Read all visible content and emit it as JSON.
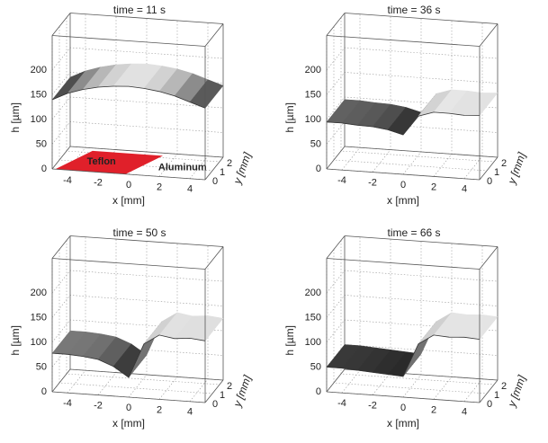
{
  "chart_data": [
    {
      "type": "surface",
      "title": "time = 11 s",
      "x_label": "x [mm]",
      "y_label": "y [mm]",
      "z_label": "h [µm]",
      "x": [
        -5,
        -4,
        -3,
        -2,
        -1,
        0,
        1,
        2,
        3,
        4,
        5
      ],
      "values": [
        140,
        155,
        165,
        172,
        176,
        178,
        176,
        172,
        165,
        155,
        145
      ],
      "xlim": [
        -5,
        5
      ],
      "xticks": [
        -4,
        -2,
        0,
        2,
        4
      ],
      "ylim": [
        0,
        2.5
      ],
      "yticks": [
        0,
        1,
        2
      ],
      "zlim": [
        0,
        270
      ],
      "zticks": [
        0,
        50,
        100,
        150,
        200
      ],
      "annotations": [
        "Teflon",
        "Aluminum"
      ],
      "annotation_color": "#e0202a"
    },
    {
      "type": "surface",
      "title": "time = 36 s",
      "x_label": "x [mm]",
      "y_label": "y [mm]",
      "z_label": "h [µm]",
      "x": [
        -5,
        -4,
        -3,
        -2,
        -1,
        0,
        1,
        2,
        3,
        4,
        5
      ],
      "values": [
        95,
        95,
        93,
        92,
        88,
        80,
        120,
        130,
        130,
        128,
        130
      ],
      "xlim": [
        -5,
        5
      ],
      "xticks": [
        -4,
        -2,
        0,
        2,
        4
      ],
      "ylim": [
        0,
        2.5
      ],
      "yticks": [
        0,
        1,
        2
      ],
      "zlim": [
        0,
        270
      ],
      "zticks": [
        0,
        50,
        100,
        150,
        200
      ]
    },
    {
      "type": "surface",
      "title": "time = 50 s",
      "x_label": "x [mm]",
      "y_label": "y [mm]",
      "z_label": "h [µm]",
      "x": [
        -5,
        -4,
        -3,
        -2,
        -1,
        0,
        1,
        2,
        3,
        4,
        5
      ],
      "values": [
        78,
        78,
        76,
        72,
        60,
        40,
        110,
        130,
        125,
        128,
        125
      ],
      "xlim": [
        -5,
        5
      ],
      "xticks": [
        -4,
        -2,
        0,
        2,
        4
      ],
      "ylim": [
        0,
        2.5
      ],
      "yticks": [
        0,
        1,
        2
      ],
      "zlim": [
        0,
        270
      ],
      "zticks": [
        0,
        50,
        100,
        150,
        200
      ]
    },
    {
      "type": "surface",
      "title": "time = 66 s",
      "x_label": "x [mm]",
      "y_label": "y [mm]",
      "z_label": "h [µm]",
      "x": [
        -5,
        -4,
        -3,
        -2,
        -1,
        0,
        1,
        2,
        3,
        4,
        5
      ],
      "values": [
        50,
        50,
        48,
        46,
        44,
        42,
        110,
        130,
        128,
        130,
        128
      ],
      "xlim": [
        -5,
        5
      ],
      "xticks": [
        -4,
        -2,
        0,
        2,
        4
      ],
      "ylim": [
        0,
        2.5
      ],
      "yticks": [
        0,
        1,
        2
      ],
      "zlim": [
        0,
        270
      ],
      "zticks": [
        0,
        50,
        100,
        150,
        200
      ]
    }
  ]
}
